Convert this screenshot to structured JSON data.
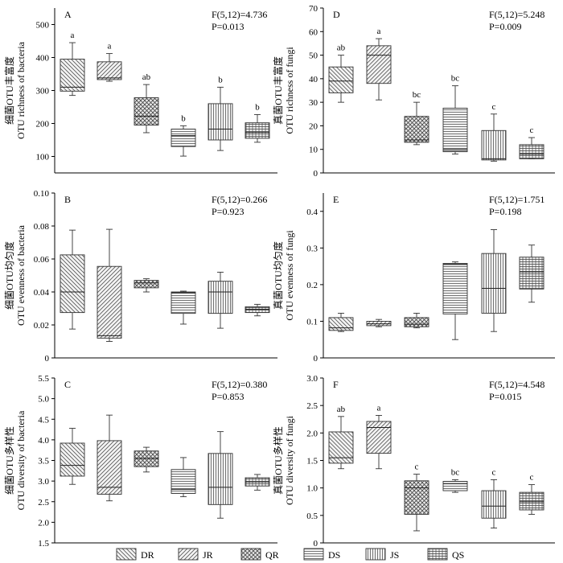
{
  "legend": {
    "labels": [
      "DR",
      "JR",
      "QR",
      "DS",
      "JS",
      "QS"
    ],
    "patterns": [
      "diag-down",
      "diag-up",
      "crosshatch",
      "horizontal",
      "vertical",
      "grid"
    ]
  },
  "chart_data": [
    {
      "type": "box",
      "panel": "A",
      "ylabel_line1": "细菌OTU丰富度",
      "ylabel_line2": "OTU richness of bacteria",
      "ylim": [
        50,
        550
      ],
      "yticks": [
        "100",
        "200",
        "300",
        "400",
        "500"
      ],
      "stat_f": "F(5,12)=4.736",
      "stat_p": "P=0.013",
      "categories": [
        "DR",
        "JR",
        "QR",
        "DS",
        "JS",
        "QS"
      ],
      "boxes": [
        {
          "min": 285,
          "q1": 298,
          "median": 310,
          "q3": 395,
          "max": 445
        },
        {
          "min": 328,
          "q1": 333,
          "median": 338,
          "q3": 387,
          "max": 412
        },
        {
          "min": 172,
          "q1": 195,
          "median": 222,
          "q3": 278,
          "max": 318
        },
        {
          "min": 101,
          "q1": 130,
          "median": 163,
          "q3": 183,
          "max": 193
        },
        {
          "min": 118,
          "q1": 150,
          "median": 183,
          "q3": 260,
          "max": 310
        },
        {
          "min": 143,
          "q1": 155,
          "median": 173,
          "q3": 202,
          "max": 227
        }
      ],
      "sig_letters": [
        "a",
        "a",
        "ab",
        "b",
        "b",
        "b"
      ]
    },
    {
      "type": "box",
      "panel": "D",
      "ylabel_line1": "真菌OTU丰富度",
      "ylabel_line2": "OTU richness of fungi",
      "ylim": [
        0,
        70
      ],
      "yticks": [
        "0",
        "10",
        "20",
        "30",
        "40",
        "50",
        "60",
        "70"
      ],
      "stat_f": "F(5,12)=5.248",
      "stat_p": "P=0.009",
      "categories": [
        "DR",
        "JR",
        "QR",
        "DS",
        "JS",
        "QS"
      ],
      "boxes": [
        {
          "min": 30,
          "q1": 34,
          "median": 39,
          "q3": 45,
          "max": 50
        },
        {
          "min": 31,
          "q1": 38,
          "median": 50,
          "q3": 54,
          "max": 57
        },
        {
          "min": 12,
          "q1": 13,
          "median": 14,
          "q3": 24,
          "max": 30
        },
        {
          "min": 8,
          "q1": 9,
          "median": 10,
          "q3": 27.5,
          "max": 37
        },
        {
          "min": 5,
          "q1": 5.5,
          "median": 6,
          "q3": 18,
          "max": 25
        },
        {
          "min": 6,
          "q1": 6,
          "median": 8,
          "q3": 12,
          "max": 15
        }
      ],
      "sig_letters": [
        "ab",
        "a",
        "bc",
        "bc",
        "c",
        "c"
      ]
    },
    {
      "type": "box",
      "panel": "B",
      "ylabel_line1": "细菌OTU均匀度",
      "ylabel_line2": "OTU evenness of bacteria",
      "ylim": [
        0,
        0.1
      ],
      "yticks": [
        "0",
        "0.02",
        "0.04",
        "0.06",
        "0.08",
        "0.10"
      ],
      "stat_f": "F(5,12)=0.266",
      "stat_p": "P=0.923",
      "categories": [
        "DR",
        "JR",
        "QR",
        "DS",
        "JS",
        "QS"
      ],
      "boxes": [
        {
          "min": 0.0175,
          "q1": 0.0275,
          "median": 0.04,
          "q3": 0.0625,
          "max": 0.0775
        },
        {
          "min": 0.01,
          "q1": 0.012,
          "median": 0.0135,
          "q3": 0.0555,
          "max": 0.078
        },
        {
          "min": 0.04,
          "q1": 0.0425,
          "median": 0.0455,
          "q3": 0.047,
          "max": 0.048
        },
        {
          "min": 0.0205,
          "q1": 0.027,
          "median": 0.0395,
          "q3": 0.04,
          "max": 0.0405
        },
        {
          "min": 0.018,
          "q1": 0.027,
          "median": 0.04,
          "q3": 0.0465,
          "max": 0.052
        },
        {
          "min": 0.0255,
          "q1": 0.0275,
          "median": 0.0295,
          "q3": 0.031,
          "max": 0.0325
        }
      ],
      "sig_letters": []
    },
    {
      "type": "box",
      "panel": "E",
      "ylabel_line1": "真菌OTU均匀度",
      "ylabel_line2": "OTU evenness of fungi",
      "ylim": [
        0,
        0.45
      ],
      "yticks": [
        "0",
        "0.1",
        "0.2",
        "0.3",
        "0.4"
      ],
      "stat_f": "F(5,12)=1.751",
      "stat_p": "P=0.198",
      "categories": [
        "DR",
        "JR",
        "QR",
        "DS",
        "JS",
        "QS"
      ],
      "boxes": [
        {
          "min": 0.072,
          "q1": 0.075,
          "median": 0.082,
          "q3": 0.11,
          "max": 0.122
        },
        {
          "min": 0.085,
          "q1": 0.088,
          "median": 0.093,
          "q3": 0.1,
          "max": 0.105
        },
        {
          "min": 0.082,
          "q1": 0.085,
          "median": 0.092,
          "q3": 0.11,
          "max": 0.122
        },
        {
          "min": 0.05,
          "q1": 0.12,
          "median": 0.255,
          "q3": 0.258,
          "max": 0.262
        },
        {
          "min": 0.072,
          "q1": 0.122,
          "median": 0.19,
          "q3": 0.285,
          "max": 0.35
        },
        {
          "min": 0.152,
          "q1": 0.188,
          "median": 0.235,
          "q3": 0.275,
          "max": 0.308
        }
      ],
      "sig_letters": []
    },
    {
      "type": "box",
      "panel": "C",
      "ylabel_line1": "细菌OTU多样性",
      "ylabel_line2": "OTU diversity of bacteria",
      "ylim": [
        1.5,
        5.5
      ],
      "yticks": [
        "1.5",
        "2.0",
        "2.5",
        "3.0",
        "3.5",
        "4.0",
        "4.5",
        "5.0",
        "5.5"
      ],
      "stat_f": "F(5,12)=0.380",
      "stat_p": "P=0.853",
      "categories": [
        "DR",
        "JR",
        "QR",
        "DS",
        "JS",
        "QS"
      ],
      "boxes": [
        {
          "min": 2.92,
          "q1": 3.12,
          "median": 3.38,
          "q3": 3.92,
          "max": 4.28
        },
        {
          "min": 2.52,
          "q1": 2.68,
          "median": 2.85,
          "q3": 3.98,
          "max": 4.6
        },
        {
          "min": 3.22,
          "q1": 3.35,
          "median": 3.55,
          "q3": 3.73,
          "max": 3.82
        },
        {
          "min": 2.62,
          "q1": 2.7,
          "median": 2.8,
          "q3": 3.28,
          "max": 3.57
        },
        {
          "min": 2.1,
          "q1": 2.43,
          "median": 2.85,
          "q3": 3.67,
          "max": 4.2
        },
        {
          "min": 2.78,
          "q1": 2.88,
          "median": 2.98,
          "q3": 3.08,
          "max": 3.16
        }
      ],
      "sig_letters": []
    },
    {
      "type": "box",
      "panel": "F",
      "ylabel_line1": "真菌OTU多样性",
      "ylabel_line2": "OTU diversity of fungi",
      "ylim": [
        0,
        3.0
      ],
      "yticks": [
        "0",
        "0.5",
        "1.0",
        "1.5",
        "2.0",
        "2.5",
        "3.0"
      ],
      "stat_f": "F(5,12)=4.548",
      "stat_p": "P=0.015",
      "categories": [
        "DR",
        "JR",
        "QR",
        "DS",
        "JS",
        "QS"
      ],
      "boxes": [
        {
          "min": 1.35,
          "q1": 1.45,
          "median": 1.55,
          "q3": 2.02,
          "max": 2.3
        },
        {
          "min": 1.35,
          "q1": 1.63,
          "median": 2.1,
          "q3": 2.21,
          "max": 2.32
        },
        {
          "min": 0.22,
          "q1": 0.52,
          "median": 1.0,
          "q3": 1.13,
          "max": 1.25
        },
        {
          "min": 0.92,
          "q1": 0.95,
          "median": 1.08,
          "q3": 1.12,
          "max": 1.15
        },
        {
          "min": 0.27,
          "q1": 0.45,
          "median": 0.67,
          "q3": 0.95,
          "max": 1.15
        },
        {
          "min": 0.52,
          "q1": 0.6,
          "median": 0.75,
          "q3": 0.92,
          "max": 1.06
        }
      ],
      "sig_letters": [
        "ab",
        "a",
        "c",
        "bc",
        "c",
        "c"
      ]
    }
  ]
}
